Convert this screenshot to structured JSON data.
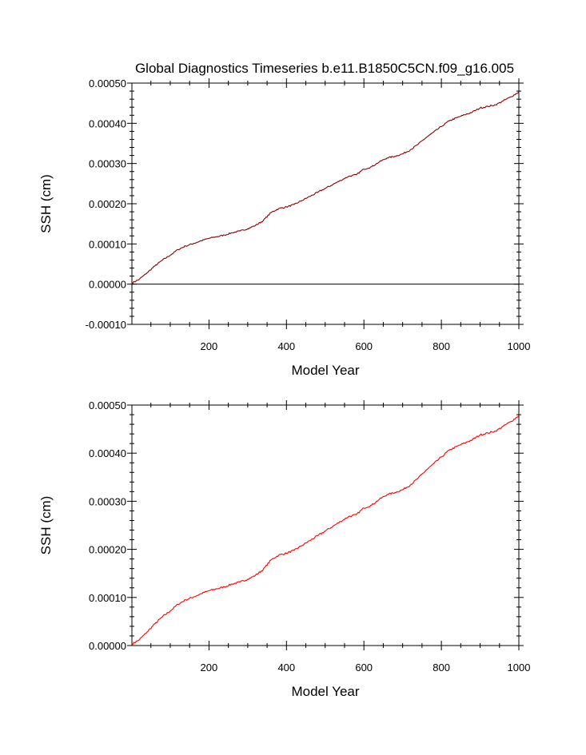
{
  "title": "Global Diagnostics Timeseries b.e11.B1850C5CN.f09_g16.005",
  "chart_data": [
    {
      "type": "line",
      "xlabel": "Model Year",
      "ylabel": "SSH (cm)",
      "xlim": [
        1,
        1000
      ],
      "ylim": [
        -0.0001,
        0.0005
      ],
      "xticks": [
        200,
        400,
        600,
        800,
        1000
      ],
      "yticks": [
        -0.0001,
        0.0,
        0.0001,
        0.0002,
        0.0003,
        0.0004,
        0.0005
      ],
      "ytick_labels": [
        "-0.00010",
        "0.00000",
        "0.00010",
        "0.00020",
        "0.00030",
        "0.00040",
        "0.00050"
      ],
      "zero_line": true,
      "series": [
        {
          "color": "#8b0000",
          "x": [
            1,
            20,
            40,
            60,
            80,
            100,
            120,
            140,
            160,
            180,
            200,
            220,
            240,
            260,
            280,
            300,
            320,
            340,
            360,
            380,
            400,
            420,
            440,
            460,
            480,
            500,
            520,
            540,
            560,
            580,
            600,
            620,
            640,
            660,
            680,
            700,
            720,
            740,
            760,
            780,
            800,
            820,
            840,
            860,
            880,
            900,
            920,
            940,
            960,
            980,
            1000
          ],
          "y": [
            3e-06,
            1.2e-05,
            2.8e-05,
            4.5e-05,
            6e-05,
            7.2e-05,
            8.6e-05,
            9.5e-05,
            0.000101,
            0.000108,
            0.000114,
            0.000118,
            0.000122,
            0.000128,
            0.000132,
            0.000138,
            0.000146,
            0.000158,
            0.000178,
            0.000188,
            0.000192,
            0.000198,
            0.000208,
            0.000218,
            0.000228,
            0.000238,
            0.000248,
            0.000258,
            0.000268,
            0.000272,
            0.000286,
            0.000292,
            0.000304,
            0.000314,
            0.000318,
            0.000324,
            0.000334,
            0.000348,
            0.000364,
            0.000378,
            0.000392,
            0.000406,
            0.000414,
            0.000421,
            0.000428,
            0.000438,
            0.000442,
            0.000446,
            0.000456,
            0.000466,
            0.000478
          ]
        }
      ]
    },
    {
      "type": "line",
      "xlabel": "Model Year",
      "ylabel": "SSH (cm)",
      "xlim": [
        1,
        1000
      ],
      "ylim": [
        0.0,
        0.0005
      ],
      "xticks": [
        200,
        400,
        600,
        800,
        1000
      ],
      "yticks": [
        0.0,
        0.0001,
        0.0002,
        0.0003,
        0.0004,
        0.0005
      ],
      "ytick_labels": [
        "0.00000",
        "0.00010",
        "0.00020",
        "0.00030",
        "0.00040",
        "0.00050"
      ],
      "zero_line": false,
      "series": [
        {
          "color": "#ff0000",
          "x": [
            1,
            20,
            40,
            60,
            80,
            100,
            120,
            140,
            160,
            180,
            200,
            220,
            240,
            260,
            280,
            300,
            320,
            340,
            360,
            380,
            400,
            420,
            440,
            460,
            480,
            500,
            520,
            540,
            560,
            580,
            600,
            620,
            640,
            660,
            680,
            700,
            720,
            740,
            760,
            780,
            800,
            820,
            840,
            860,
            880,
            900,
            920,
            940,
            960,
            980,
            1000
          ],
          "y": [
            3e-06,
            1.2e-05,
            2.8e-05,
            4.5e-05,
            6e-05,
            7.2e-05,
            8.6e-05,
            9.5e-05,
            0.000101,
            0.000108,
            0.000114,
            0.000118,
            0.000122,
            0.000128,
            0.000132,
            0.000138,
            0.000146,
            0.000158,
            0.000178,
            0.000188,
            0.000192,
            0.000198,
            0.000208,
            0.000218,
            0.000228,
            0.000238,
            0.000248,
            0.000258,
            0.000268,
            0.000272,
            0.000286,
            0.000292,
            0.000304,
            0.000314,
            0.000318,
            0.000324,
            0.000334,
            0.000348,
            0.000364,
            0.000378,
            0.000392,
            0.000406,
            0.000414,
            0.000421,
            0.000428,
            0.000438,
            0.000442,
            0.000446,
            0.000456,
            0.000466,
            0.000478
          ]
        }
      ]
    }
  ]
}
